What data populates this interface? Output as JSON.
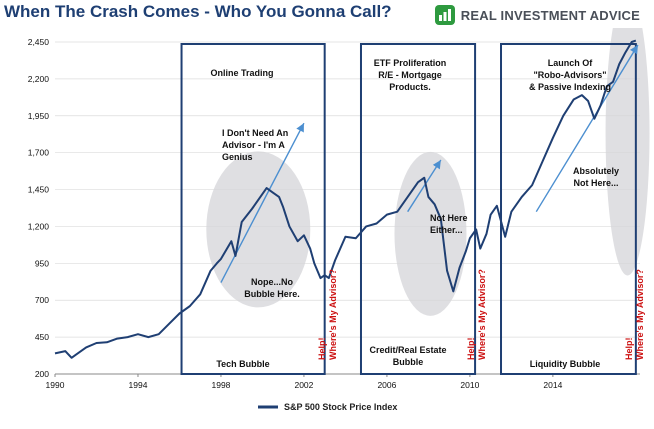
{
  "header": {
    "title": "When The Crash Comes - Who You Gonna Call?",
    "brand_name": "REAL INVESTMENT ADVICE",
    "brand_icon": "bar-chart-icon",
    "brand_color": "#2e9a3f"
  },
  "colors": {
    "series": "#1f3f73",
    "box": "#1f3f73",
    "help": "#cc1111",
    "trend": "#4c8fd0",
    "bubble": "#d4d4d8"
  },
  "chart_data": {
    "type": "line",
    "title": "When The Crash Comes - Who You Gonna Call?",
    "xlabel": "",
    "ylabel": "",
    "xlim": [
      1990,
      2018.2
    ],
    "ylim": [
      200,
      2450
    ],
    "yticks": [
      200,
      450,
      700,
      950,
      1200,
      1450,
      1700,
      1950,
      2200,
      2450
    ],
    "ytick_labels": [
      "200",
      "450",
      "700",
      "950",
      "1,200",
      "1,450",
      "1,700",
      "1,950",
      "2,200",
      "2,450"
    ],
    "xticks": [
      1990,
      1994,
      1998,
      2002,
      2006,
      2010,
      2014
    ],
    "xtick_labels": [
      "1990",
      "1994",
      "1998",
      "2002",
      "2006",
      "2010",
      "2014"
    ],
    "grid": true,
    "legend": {
      "position": "bottom-center"
    },
    "series": [
      {
        "name": "S&P 500 Stock Price Index",
        "x": [
          1990.0,
          1990.5,
          1990.8,
          1991.0,
          1991.5,
          1992.0,
          1992.5,
          1993.0,
          1993.5,
          1994.0,
          1994.5,
          1995.0,
          1995.5,
          1996.0,
          1996.5,
          1997.0,
          1997.5,
          1997.8,
          1998.0,
          1998.5,
          1998.7,
          1999.0,
          1999.5,
          2000.0,
          2000.2,
          2000.5,
          2000.8,
          2001.0,
          2001.3,
          2001.7,
          2002.0,
          2002.3,
          2002.5,
          2002.8,
          2003.0,
          2003.2,
          2003.5,
          2004.0,
          2004.5,
          2005.0,
          2005.5,
          2006.0,
          2006.5,
          2007.0,
          2007.5,
          2007.8,
          2008.0,
          2008.3,
          2008.6,
          2008.9,
          2009.2,
          2009.5,
          2009.8,
          2010.0,
          2010.3,
          2010.5,
          2010.8,
          2011.0,
          2011.3,
          2011.7,
          2012.0,
          2012.5,
          2013.0,
          2013.5,
          2014.0,
          2014.5,
          2015.0,
          2015.4,
          2015.7,
          2016.0,
          2016.3,
          2016.6,
          2016.9,
          2017.2,
          2017.5,
          2017.8,
          2018.0
        ],
        "values": [
          340,
          355,
          310,
          330,
          380,
          410,
          415,
          440,
          450,
          470,
          450,
          470,
          540,
          610,
          660,
          740,
          900,
          950,
          980,
          1100,
          1000,
          1230,
          1320,
          1420,
          1460,
          1430,
          1400,
          1330,
          1200,
          1100,
          1140,
          1050,
          950,
          850,
          870,
          850,
          970,
          1130,
          1120,
          1200,
          1220,
          1280,
          1300,
          1400,
          1500,
          1530,
          1400,
          1350,
          1250,
          900,
          760,
          920,
          1030,
          1120,
          1180,
          1050,
          1150,
          1280,
          1340,
          1130,
          1300,
          1400,
          1480,
          1640,
          1800,
          1950,
          2060,
          2090,
          2050,
          1930,
          2020,
          2150,
          2180,
          2300,
          2380,
          2450,
          2460
        ]
      }
    ],
    "annotations": [
      {
        "id": "online-trading",
        "text": "Online Trading"
      },
      {
        "id": "genius",
        "lines": [
          "I Don't Need An",
          "Advisor - I'm A",
          "Genius"
        ]
      },
      {
        "id": "nope-bubble",
        "lines": [
          "Nope...No",
          "Bubble Here."
        ]
      },
      {
        "id": "tech-bubble",
        "text": "Tech Bubble"
      },
      {
        "id": "etf-proliferation",
        "lines": [
          "ETF Proliferation",
          "R/E - Mortgage",
          "Products."
        ]
      },
      {
        "id": "not-here-either",
        "lines": [
          "Not Here",
          "Either..."
        ]
      },
      {
        "id": "credit-bubble",
        "lines": [
          "Credit/Real Estate",
          "Bubble"
        ]
      },
      {
        "id": "robo-advisors",
        "lines": [
          "Launch Of",
          "\"Robo-Advisors\"",
          "& Passive Indexing"
        ]
      },
      {
        "id": "absolutely-not-here",
        "lines": [
          "Absolutely",
          "Not Here..."
        ]
      },
      {
        "id": "liquidity-bubble",
        "text": "Liquidity Bubble"
      }
    ],
    "help_labels": [
      "Help!",
      "Where's My Advisor?"
    ]
  }
}
